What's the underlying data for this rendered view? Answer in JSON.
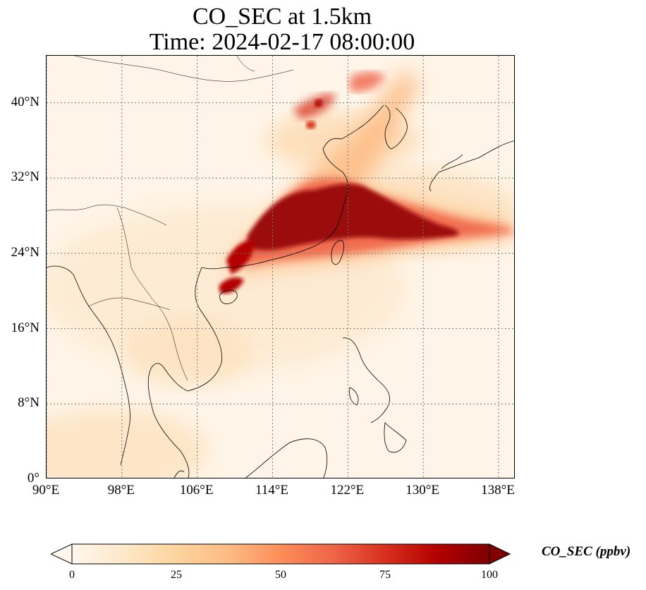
{
  "title": {
    "line1": "CO_SEC at 1.5km",
    "line2": "Time: 2024-02-17 08:00:00"
  },
  "map": {
    "extent": {
      "lon_min": 90,
      "lon_max": 139.8,
      "lat_min": 0,
      "lat_max": 45
    },
    "gridlines": "dotted gray",
    "lat_ticks": [
      {
        "value": 0,
        "label": "0°"
      },
      {
        "value": 8,
        "label": "8°N"
      },
      {
        "value": 16,
        "label": "16°N"
      },
      {
        "value": 24,
        "label": "24°N"
      },
      {
        "value": 32,
        "label": "32°N"
      },
      {
        "value": 40,
        "label": "40°N"
      }
    ],
    "lon_ticks": [
      {
        "value": 90,
        "label": "90°E"
      },
      {
        "value": 98,
        "label": "98°E"
      },
      {
        "value": 106,
        "label": "106°E"
      },
      {
        "value": 114,
        "label": "114°E"
      },
      {
        "value": 122,
        "label": "122°E"
      },
      {
        "value": 130,
        "label": "130°E"
      },
      {
        "value": 138,
        "label": "138°E"
      }
    ]
  },
  "colorbar": {
    "label": "CO_SEC (ppbv)",
    "min": 0,
    "max": 100,
    "extend": "both",
    "ticks": [
      {
        "value": 0,
        "label": "0"
      },
      {
        "value": 25,
        "label": "25"
      },
      {
        "value": 50,
        "label": "50"
      },
      {
        "value": 75,
        "label": "75"
      },
      {
        "value": 100,
        "label": "100"
      }
    ],
    "colors": [
      "#fff7ec",
      "#fee8c8",
      "#fdd49e",
      "#fdbb84",
      "#fc8d59",
      "#ef6548",
      "#d7301f",
      "#b30000",
      "#7f0000"
    ]
  }
}
